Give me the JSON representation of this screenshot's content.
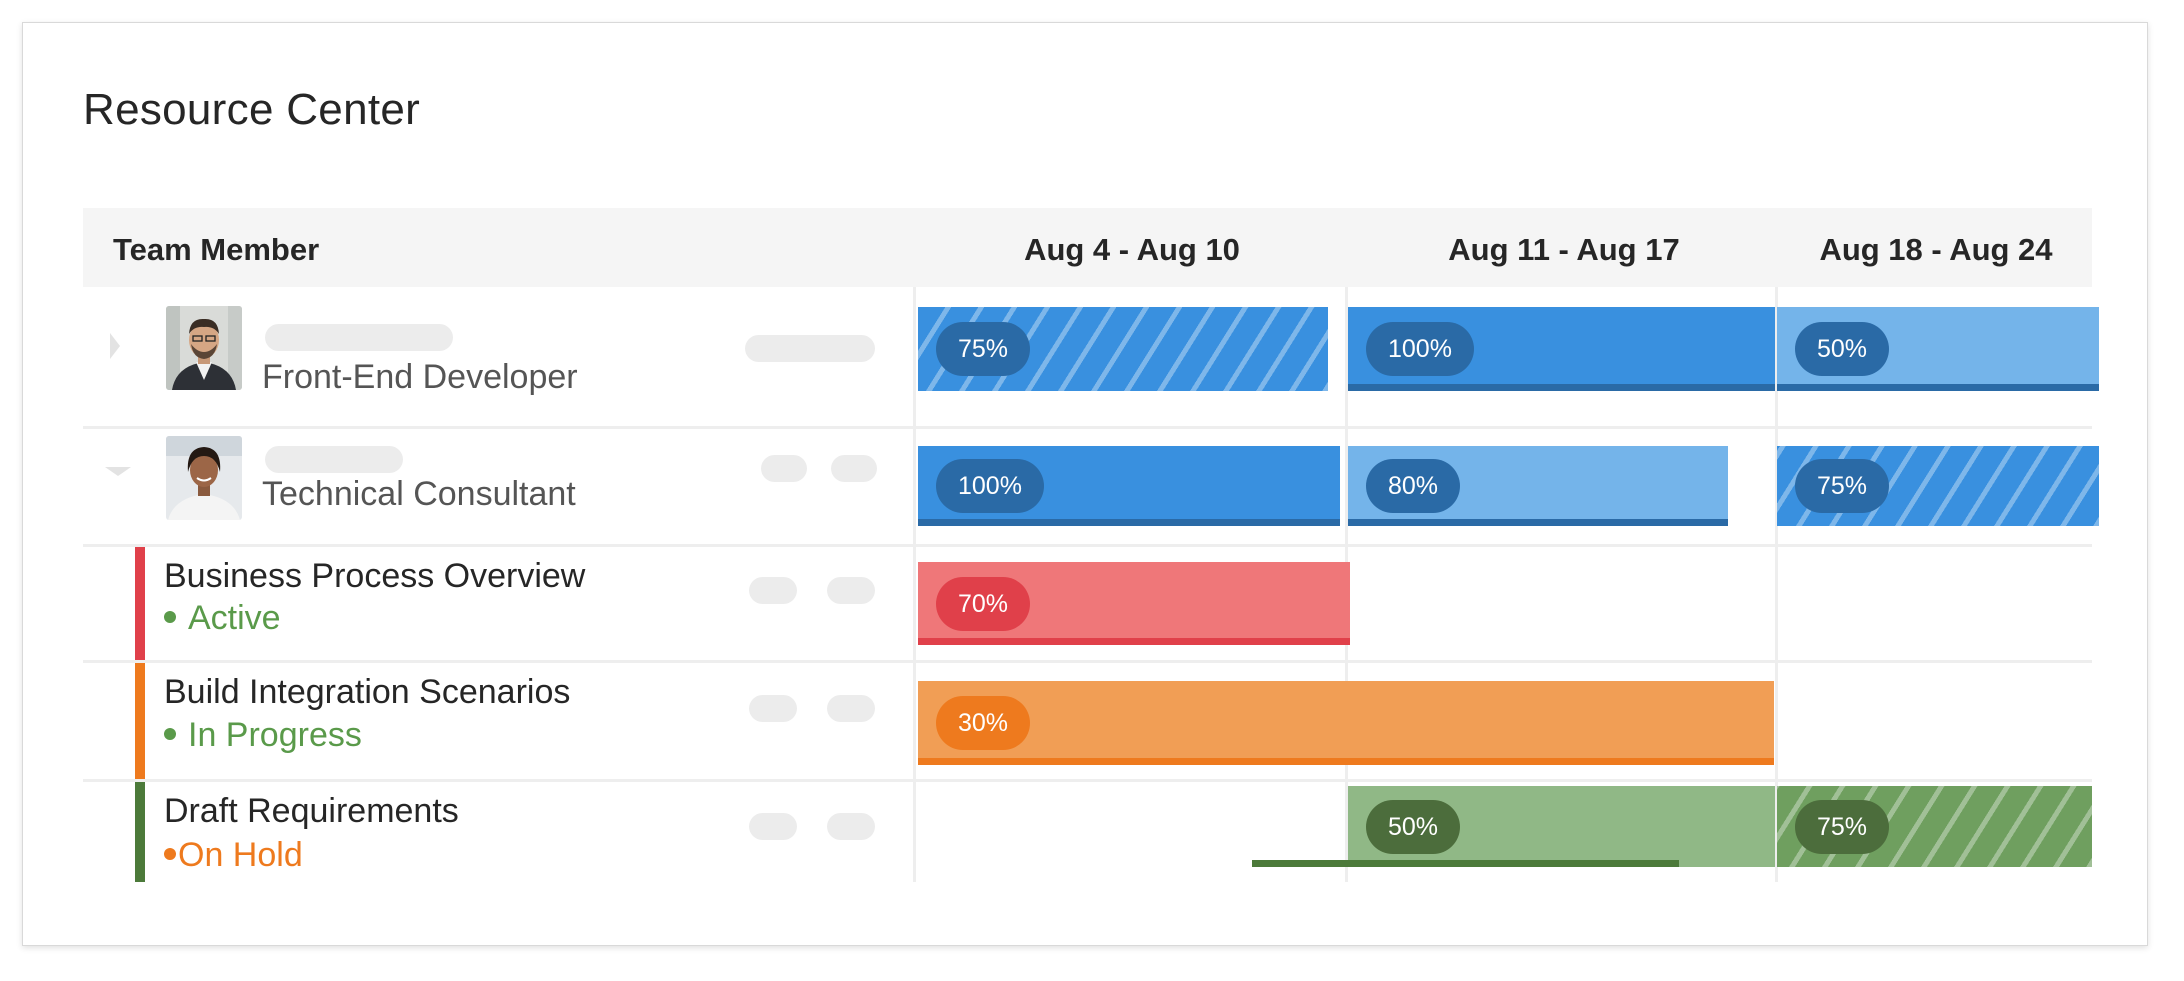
{
  "title": "Resource Center",
  "columns": {
    "member": "Team Member",
    "weeks": [
      "Aug 4 - Aug 10",
      "Aug 11 - Aug 17",
      "Aug 18 - Aug 24"
    ]
  },
  "members": [
    {
      "role": "Front-End Developer",
      "allocations": [
        "75%",
        "100%",
        "50%"
      ]
    },
    {
      "role": "Technical Consultant",
      "allocations": [
        "100%",
        "80%",
        "75%"
      ]
    }
  ],
  "tasks": [
    {
      "name": "Business Process Overview",
      "status": "Active",
      "status_color": "#5a9a4a",
      "accent": "#e0404a",
      "allocation": "70%"
    },
    {
      "name": "Build Integration Scenarios",
      "status": "In Progress",
      "status_color": "#5a9a4a",
      "accent": "#ee7a1e",
      "allocation": "30%"
    },
    {
      "name": "Draft Requirements",
      "status": "On Hold",
      "status_color": "#ee7a1e",
      "accent": "#4c7a3a",
      "allocations": [
        "50%",
        "75%"
      ]
    }
  ],
  "colors": {
    "blue_dark": "#3990df",
    "blue_light": "#74b4ea",
    "red": "#ef7779",
    "orange": "#f19e55",
    "green": "#90b886"
  }
}
